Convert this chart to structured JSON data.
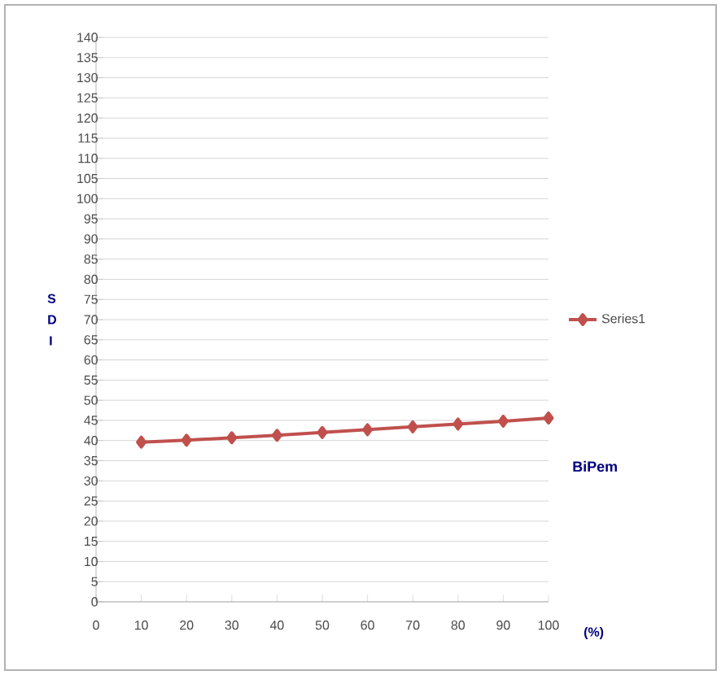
{
  "chart_data": {
    "type": "line",
    "xlabel": "(%)",
    "ylabel": "S D I",
    "annotations": [
      "BiPem"
    ],
    "x": [
      10,
      20,
      30,
      40,
      50,
      60,
      70,
      80,
      90,
      100
    ],
    "series": [
      {
        "name": "Series1",
        "color": "#c0504d",
        "values": [
          39.6,
          40.1,
          40.7,
          41.3,
          42,
          42.7,
          43.4,
          44.1,
          44.8,
          45.6
        ]
      }
    ],
    "xlim": [
      0,
      100
    ],
    "xticks": [
      0,
      10,
      20,
      30,
      40,
      50,
      60,
      70,
      80,
      90,
      100
    ],
    "ylim": [
      0,
      140
    ],
    "yticks": [
      0,
      5,
      10,
      15,
      20,
      25,
      30,
      35,
      40,
      45,
      50,
      55,
      60,
      65,
      70,
      75,
      80,
      85,
      90,
      95,
      100,
      105,
      110,
      115,
      120,
      125,
      130,
      135,
      140
    ],
    "grid": "y",
    "legend": "right",
    "marker": "diamond",
    "line_style": "solid"
  }
}
